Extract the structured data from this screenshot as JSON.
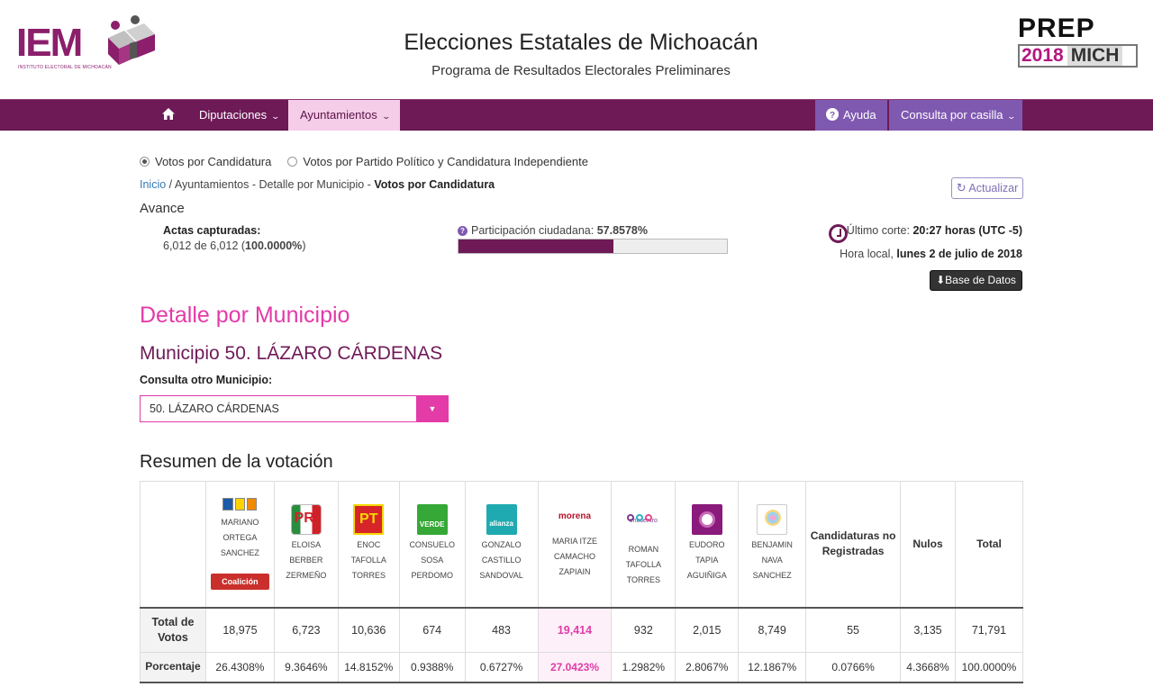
{
  "header": {
    "title": "Elecciones Estatales de Michoacán",
    "subtitle": "Programa de Resultados Electorales Preliminares",
    "logo_left_text": "IEM",
    "logo_left_sub": "INSTITUTO ELECTORAL DE MICHOACÁN",
    "logo_right_top": "PREP",
    "logo_right_year": "2018",
    "logo_right_state": "MICH"
  },
  "nav": {
    "home_icon": "home-icon",
    "diputaciones": "Diputaciones",
    "ayuntamientos": "Ayuntamientos",
    "ayuda": "Ayuda",
    "consulta": "Consulta por casilla"
  },
  "radios": {
    "candidatura": "Votos por Candidatura",
    "partido": "Votos por Partido Político y Candidatura Independiente"
  },
  "breadcrumb": {
    "inicio": "Inicio",
    "middle": " / Ayuntamientos - Detalle por Municipio - ",
    "current": "Votos por Candidatura"
  },
  "actualizar": "Actualizar",
  "avance": {
    "title": "Avance",
    "actas_label": "Actas capturadas:",
    "actas_pre": "6,012 de 6,012 (",
    "actas_pct": "100.0000%",
    "actas_post": ")",
    "participacion_label": "Participación ciudadana: ",
    "participacion_value": "57.8578%",
    "participacion_fraction": 0.578578,
    "corte_label": "Último corte: ",
    "corte_value": "20:27 horas (UTC -5)",
    "hora_label": "Hora local, ",
    "hora_value": "lunes 2 de julio de 2018",
    "base_datos": "Base de Datos"
  },
  "detalle": {
    "title": "Detalle por Municipio",
    "municipio": "Municipio 50. LÁZARO CÁRDENAS",
    "otro_label": "Consulta otro Municipio:",
    "select_value": "50. LÁZARO CÁRDENAS"
  },
  "resumen": {
    "title": "Resumen de la votación",
    "coalicion": "Coalición",
    "candidates": [
      {
        "logo": "pan-prd-mc-logo",
        "line1": "MARIANO",
        "line2": "ORTEGA",
        "line3": "SANCHEZ",
        "votes": "18,975",
        "pct": "26.4308%"
      },
      {
        "logo": "pri-logo",
        "line1": "ELOISA",
        "line2": "BERBER",
        "line3": "ZERMEÑO",
        "votes": "6,723",
        "pct": "9.3646%"
      },
      {
        "logo": "pt-logo",
        "line1": "ENOC",
        "line2": "TAFOLLA",
        "line3": "TORRES",
        "votes": "10,636",
        "pct": "14.8152%"
      },
      {
        "logo": "verde-logo",
        "line1": "CONSUELO",
        "line2": "SOSA",
        "line3": "PERDOMO",
        "votes": "674",
        "pct": "0.9388%"
      },
      {
        "logo": "nueva-alianza-logo",
        "line1": "GONZALO",
        "line2": "CASTILLO",
        "line3": "SANDOVAL",
        "votes": "483",
        "pct": "0.6727%"
      },
      {
        "logo": "morena-logo",
        "line1": "MARIA ITZE",
        "line2": "CAMACHO",
        "line3": "ZAPIAIN",
        "votes": "19,414",
        "pct": "27.0423%"
      },
      {
        "logo": "encuentro-social-logo",
        "line1": "ROMAN",
        "line2": "TAFOLLA",
        "line3": "TORRES",
        "votes": "932",
        "pct": "1.2982%"
      },
      {
        "logo": "independiente-logo",
        "line1": "EUDORO",
        "line2": "TAPIA",
        "line3": "AGUIÑIGA",
        "votes": "2,015",
        "pct": "2.8067%"
      },
      {
        "logo": "independiente-logo-2",
        "line1": "BENJAMIN",
        "line2": "NAVA",
        "line3": "SANCHEZ",
        "votes": "8,749",
        "pct": "12.1867%"
      }
    ],
    "logo_texts": {
      "pri": "PRI",
      "pt": "PT",
      "verde": "VERDE",
      "nueva": "alianza",
      "morena": "morena",
      "es": "encuentro"
    },
    "cnr_label1": "Candidaturas no",
    "cnr_label2": "Registradas",
    "nulos_label": "Nulos",
    "total_label": "Total",
    "row_total_label1": "Total de",
    "row_total_label2": "Votos",
    "row_pct_label": "Porcentaje",
    "cnr_votes": "55",
    "cnr_pct": "0.0766%",
    "nulos_votes": "3,135",
    "nulos_pct": "4.3668%",
    "total_votes": "71,791",
    "total_pct": "100.0000%"
  },
  "colors": {
    "primary": "#6e1a57",
    "accent": "#e33ba8",
    "nav_alt": "#7f59b0"
  }
}
